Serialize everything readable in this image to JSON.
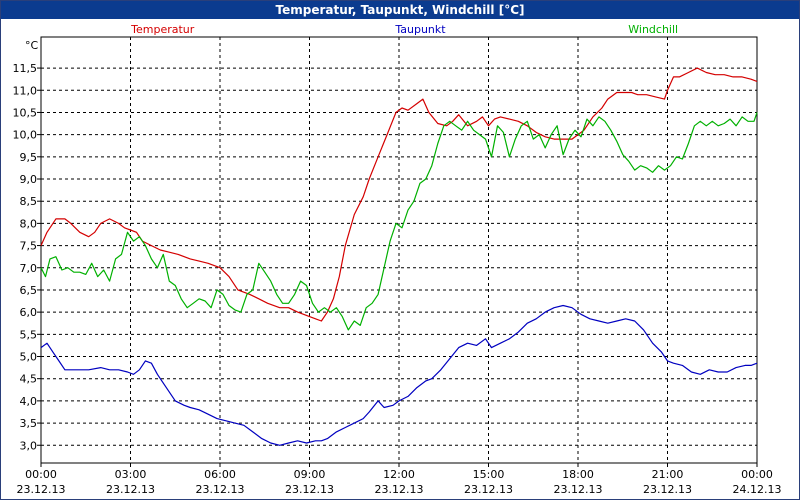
{
  "window": {
    "title": "Temperatur, Taupunkt, Windchill [°C]"
  },
  "chart_data": {
    "type": "line",
    "title": "Temperatur, Taupunkt, Windchill [°C]",
    "ylabel": "°C",
    "xlabel": "",
    "ylim": [
      2.6,
      12.2
    ],
    "xlim": [
      0,
      24
    ],
    "yticks": [
      3.0,
      3.5,
      4.0,
      4.5,
      5.0,
      5.5,
      6.0,
      6.5,
      7.0,
      7.5,
      8.0,
      8.5,
      9.0,
      9.5,
      10.0,
      10.5,
      11.0,
      11.5
    ],
    "ytick_labels": [
      "3,0",
      "3,5",
      "4,0",
      "4,5",
      "5,0",
      "5,5",
      "6,0",
      "6,5",
      "7,0",
      "7,5",
      "8,0",
      "8,5",
      "9,0",
      "9,5",
      "10,0",
      "10,5",
      "11,0",
      "11,5"
    ],
    "xticks": [
      {
        "t": 0,
        "time": "00:00",
        "date": "23.12.13"
      },
      {
        "t": 3,
        "time": "03:00",
        "date": "23.12.13"
      },
      {
        "t": 6,
        "time": "06:00",
        "date": "23.12.13"
      },
      {
        "t": 9,
        "time": "09:00",
        "date": "23.12.13"
      },
      {
        "t": 12,
        "time": "12:00",
        "date": "23.12.13"
      },
      {
        "t": 15,
        "time": "15:00",
        "date": "23.12.13"
      },
      {
        "t": 18,
        "time": "18:00",
        "date": "23.12.13"
      },
      {
        "t": 21,
        "time": "21:00",
        "date": "23.12.13"
      },
      {
        "t": 24,
        "time": "00:00",
        "date": "24.12.13"
      }
    ],
    "grid": true,
    "legend_position": "top",
    "series": [
      {
        "name": "Temperatur",
        "color": "#d40000",
        "x": [
          0,
          0.2,
          0.5,
          0.8,
          1.0,
          1.3,
          1.6,
          1.8,
          2.0,
          2.3,
          2.6,
          2.8,
          3.0,
          3.2,
          3.4,
          3.7,
          4.0,
          4.3,
          4.6,
          5.0,
          5.3,
          5.6,
          6.0,
          6.3,
          6.6,
          7.0,
          7.3,
          7.6,
          8.0,
          8.3,
          8.6,
          9.0,
          9.2,
          9.4,
          9.6,
          9.8,
          10.0,
          10.2,
          10.5,
          10.8,
          11.0,
          11.3,
          11.6,
          11.9,
          12.1,
          12.3,
          12.6,
          12.8,
          13.0,
          13.3,
          13.6,
          13.8,
          14.0,
          14.3,
          14.6,
          14.8,
          15.0,
          15.2,
          15.4,
          15.7,
          16.0,
          16.3,
          16.6,
          16.9,
          17.2,
          17.5,
          17.8,
          18.0,
          18.2,
          18.5,
          18.8,
          19.0,
          19.3,
          19.6,
          19.8,
          20.0,
          20.3,
          20.6,
          20.9,
          21.0,
          21.2,
          21.4,
          21.7,
          22.0,
          22.3,
          22.6,
          22.9,
          23.2,
          23.5,
          23.8,
          24.0
        ],
        "y": [
          7.5,
          7.8,
          8.1,
          8.1,
          8.0,
          7.8,
          7.7,
          7.8,
          8.0,
          8.1,
          8.0,
          7.9,
          7.85,
          7.8,
          7.6,
          7.5,
          7.4,
          7.35,
          7.3,
          7.2,
          7.15,
          7.1,
          7.0,
          6.8,
          6.5,
          6.4,
          6.3,
          6.2,
          6.1,
          6.1,
          6.0,
          5.9,
          5.85,
          5.8,
          6.0,
          6.3,
          6.8,
          7.5,
          8.2,
          8.6,
          9.0,
          9.5,
          10.0,
          10.5,
          10.6,
          10.55,
          10.7,
          10.8,
          10.5,
          10.25,
          10.2,
          10.3,
          10.45,
          10.2,
          10.3,
          10.4,
          10.2,
          10.35,
          10.4,
          10.35,
          10.3,
          10.2,
          10.05,
          9.95,
          9.9,
          9.9,
          9.9,
          10.0,
          10.1,
          10.4,
          10.6,
          10.8,
          10.95,
          10.95,
          10.95,
          10.9,
          10.9,
          10.85,
          10.8,
          11.0,
          11.3,
          11.3,
          11.4,
          11.5,
          11.4,
          11.35,
          11.35,
          11.3,
          11.3,
          11.25,
          11.2
        ]
      },
      {
        "name": "Taupunkt",
        "color": "#0000c0",
        "x": [
          0,
          0.2,
          0.4,
          0.6,
          0.8,
          1.0,
          1.3,
          1.6,
          2.0,
          2.3,
          2.6,
          2.9,
          3.1,
          3.3,
          3.5,
          3.7,
          3.9,
          4.2,
          4.5,
          4.8,
          5.0,
          5.3,
          5.6,
          5.9,
          6.2,
          6.5,
          6.8,
          7.1,
          7.4,
          7.7,
          8.0,
          8.3,
          8.6,
          8.9,
          9.2,
          9.4,
          9.6,
          9.9,
          10.2,
          10.5,
          10.8,
          11.0,
          11.3,
          11.5,
          11.8,
          12.0,
          12.3,
          12.6,
          12.9,
          13.1,
          13.4,
          13.7,
          14.0,
          14.3,
          14.6,
          14.9,
          15.1,
          15.4,
          15.7,
          16.0,
          16.3,
          16.6,
          16.9,
          17.2,
          17.5,
          17.8,
          18.1,
          18.4,
          18.7,
          19.0,
          19.3,
          19.6,
          19.9,
          20.2,
          20.5,
          20.8,
          21.0,
          21.2,
          21.5,
          21.8,
          22.1,
          22.4,
          22.7,
          23.0,
          23.3,
          23.6,
          23.8,
          24.0
        ],
        "y": [
          5.2,
          5.3,
          5.1,
          4.9,
          4.7,
          4.7,
          4.7,
          4.7,
          4.75,
          4.7,
          4.7,
          4.65,
          4.6,
          4.7,
          4.9,
          4.85,
          4.6,
          4.3,
          4.0,
          3.9,
          3.85,
          3.8,
          3.7,
          3.6,
          3.55,
          3.5,
          3.45,
          3.3,
          3.15,
          3.05,
          3.0,
          3.05,
          3.1,
          3.05,
          3.1,
          3.1,
          3.15,
          3.3,
          3.4,
          3.5,
          3.6,
          3.75,
          4.0,
          3.85,
          3.9,
          4.0,
          4.1,
          4.3,
          4.45,
          4.5,
          4.7,
          4.95,
          5.2,
          5.3,
          5.25,
          5.4,
          5.2,
          5.3,
          5.4,
          5.55,
          5.75,
          5.85,
          6.0,
          6.1,
          6.15,
          6.1,
          5.95,
          5.85,
          5.8,
          5.75,
          5.8,
          5.85,
          5.8,
          5.6,
          5.3,
          5.1,
          4.9,
          4.85,
          4.8,
          4.65,
          4.6,
          4.7,
          4.65,
          4.65,
          4.75,
          4.8,
          4.8,
          4.85
        ]
      },
      {
        "name": "Windchill",
        "color": "#00b000",
        "x": [
          0,
          0.15,
          0.3,
          0.5,
          0.7,
          0.9,
          1.1,
          1.3,
          1.5,
          1.7,
          1.9,
          2.1,
          2.3,
          2.5,
          2.7,
          2.9,
          3.1,
          3.3,
          3.5,
          3.7,
          3.9,
          4.1,
          4.3,
          4.5,
          4.7,
          4.9,
          5.1,
          5.3,
          5.5,
          5.7,
          5.9,
          6.1,
          6.3,
          6.5,
          6.7,
          6.9,
          7.1,
          7.3,
          7.5,
          7.7,
          7.9,
          8.1,
          8.3,
          8.5,
          8.7,
          8.9,
          9.1,
          9.3,
          9.5,
          9.7,
          9.9,
          10.1,
          10.3,
          10.5,
          10.7,
          10.9,
          11.1,
          11.3,
          11.5,
          11.7,
          11.9,
          12.1,
          12.3,
          12.5,
          12.7,
          12.9,
          13.1,
          13.3,
          13.5,
          13.7,
          13.9,
          14.1,
          14.3,
          14.5,
          14.7,
          14.9,
          15.1,
          15.3,
          15.5,
          15.7,
          15.9,
          16.1,
          16.3,
          16.5,
          16.7,
          16.9,
          17.1,
          17.3,
          17.5,
          17.7,
          17.9,
          18.1,
          18.3,
          18.5,
          18.7,
          18.9,
          19.1,
          19.3,
          19.5,
          19.7,
          19.9,
          20.1,
          20.3,
          20.5,
          20.7,
          20.9,
          21.1,
          21.3,
          21.5,
          21.7,
          21.9,
          22.1,
          22.3,
          22.5,
          22.7,
          22.9,
          23.1,
          23.3,
          23.5,
          23.7,
          23.9,
          24.0
        ],
        "y": [
          7.0,
          6.8,
          7.2,
          7.25,
          6.95,
          7.0,
          6.9,
          6.9,
          6.85,
          7.1,
          6.8,
          6.95,
          6.7,
          7.2,
          7.3,
          7.8,
          7.6,
          7.7,
          7.5,
          7.2,
          7.0,
          7.3,
          6.7,
          6.6,
          6.3,
          6.1,
          6.2,
          6.3,
          6.25,
          6.1,
          6.5,
          6.4,
          6.15,
          6.05,
          6.0,
          6.4,
          6.5,
          7.1,
          6.9,
          6.7,
          6.4,
          6.2,
          6.2,
          6.4,
          6.7,
          6.6,
          6.2,
          6.0,
          6.1,
          6.0,
          6.1,
          5.9,
          5.6,
          5.8,
          5.7,
          6.1,
          6.2,
          6.4,
          7.0,
          7.6,
          8.0,
          7.9,
          8.3,
          8.5,
          8.9,
          9.0,
          9.3,
          9.8,
          10.2,
          10.3,
          10.2,
          10.1,
          10.3,
          10.1,
          10.0,
          9.9,
          9.5,
          10.2,
          10.05,
          9.5,
          9.9,
          10.2,
          10.3,
          9.9,
          10.0,
          9.7,
          10.0,
          10.2,
          9.55,
          9.9,
          10.1,
          9.95,
          10.35,
          10.2,
          10.4,
          10.3,
          10.1,
          9.85,
          9.55,
          9.4,
          9.2,
          9.3,
          9.25,
          9.15,
          9.3,
          9.2,
          9.3,
          9.5,
          9.45,
          9.8,
          10.2,
          10.3,
          10.2,
          10.3,
          10.2,
          10.25,
          10.35,
          10.2,
          10.4,
          10.3,
          10.3,
          10.5
        ]
      }
    ]
  }
}
